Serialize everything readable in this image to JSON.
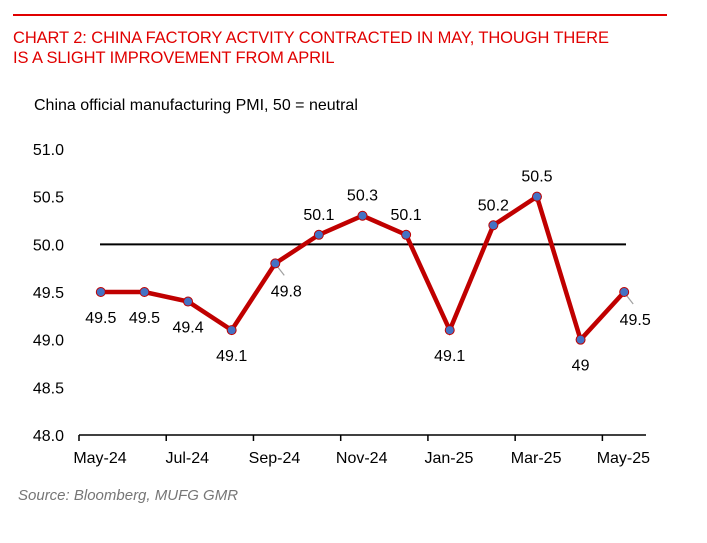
{
  "header": {
    "title": "CHART 2: CHINA FACTORY ACTVITY CONTRACTED IN MAY, THOUGH THERE IS A SLIGHT IMPROVEMENT FROM APRIL",
    "title_line1": "CHART 2: CHINA FACTORY ACTVITY CONTRACTED IN MAY, THOUGH THERE",
    "title_line2": "IS A SLIGHT IMPROVEMENT FROM APRIL",
    "accent_color": "#e00000"
  },
  "footer": {
    "source": "Source: Bloomberg, MUFG GMR"
  },
  "chart_data": {
    "type": "line",
    "title": "China official manufacturing PMI, 50 = neutral",
    "xlabel": "",
    "ylabel": "",
    "x": [
      "May-24",
      "Jun-24",
      "Jul-24",
      "Aug-24",
      "Sep-24",
      "Oct-24",
      "Nov-24",
      "Dec-24",
      "Jan-25",
      "Feb-25",
      "Mar-25",
      "Apr-25",
      "May-25"
    ],
    "series": [
      {
        "name": "China official manufacturing PMI",
        "values": [
          49.5,
          49.5,
          49.4,
          49.1,
          49.8,
          50.1,
          50.3,
          50.1,
          49.1,
          50.2,
          50.5,
          49.0,
          49.5
        ],
        "data_labels": [
          "49.5",
          "49.5",
          "49.4",
          "49.1",
          "49.8",
          "50.1",
          "50.3",
          "50.1",
          "49.1",
          "50.2",
          "50.5",
          "49",
          "49.5"
        ],
        "label_positions": [
          "below",
          "below",
          "below",
          "below",
          "below-right",
          "above",
          "above",
          "above",
          "below",
          "above",
          "above",
          "below",
          "below-right"
        ],
        "line_color": "#c00000",
        "marker_color": "#4472c4"
      }
    ],
    "reference_line": {
      "value": 50.0,
      "label": "neutral",
      "color": "#000000"
    },
    "x_tick_labels": [
      "May-24",
      "Jul-24",
      "Sep-24",
      "Nov-24",
      "Jan-25",
      "Mar-25",
      "May-25"
    ],
    "y_tick_labels": [
      "51.0",
      "50.5",
      "50.0",
      "49.5",
      "49.0",
      "48.5",
      "48.0"
    ],
    "ylim": [
      48.0,
      51.0
    ],
    "y_ticks": [
      51.0,
      50.5,
      50.0,
      49.5,
      49.0,
      48.5,
      48.0
    ],
    "grid": false,
    "legend": "none"
  }
}
